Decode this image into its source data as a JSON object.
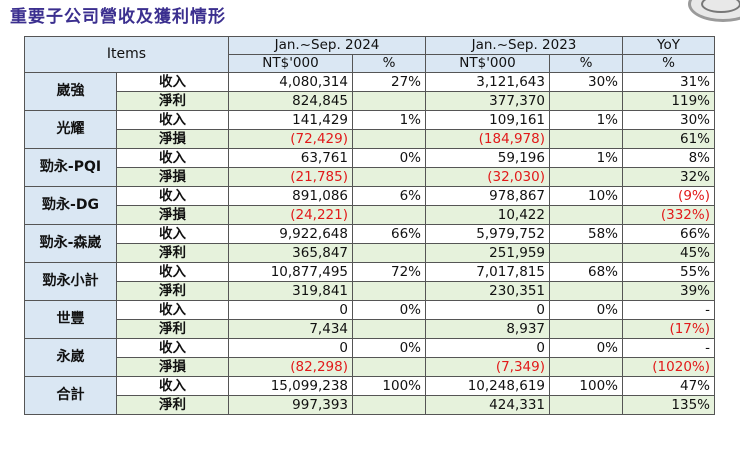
{
  "title": "重要子公司營收及獲利情形",
  "header": {
    "items": "Items",
    "period_2024": "Jan.~Sep. 2024",
    "period_2023": "Jan.~Sep. 2023",
    "yoy": "YoY",
    "unit_2024": "NT$'000",
    "pct_2024": "%",
    "unit_2023": "NT$'000",
    "pct_2023": "%",
    "pct_yoy": "%"
  },
  "companies": [
    {
      "name": "崴強",
      "rows": [
        {
          "metric": "收入",
          "v2024": "4,080,314",
          "p2024": "27%",
          "v2023": "3,121,643",
          "p2023": "30%",
          "yoy": "31%"
        },
        {
          "metric": "淨利",
          "v2024": "824,845",
          "p2024": "",
          "v2023": "377,370",
          "p2023": "",
          "yoy": "119%"
        }
      ]
    },
    {
      "name": "光耀",
      "rows": [
        {
          "metric": "收入",
          "v2024": "141,429",
          "p2024": "1%",
          "v2023": "109,161",
          "p2023": "1%",
          "yoy": "30%"
        },
        {
          "metric": "淨損",
          "v2024": "(72,429)",
          "p2024": "",
          "v2023": "(184,978)",
          "p2023": "",
          "yoy": "61%"
        }
      ]
    },
    {
      "name": "勁永-PQI",
      "rows": [
        {
          "metric": "收入",
          "v2024": "63,761",
          "p2024": "0%",
          "v2023": "59,196",
          "p2023": "1%",
          "yoy": "8%"
        },
        {
          "metric": "淨損",
          "v2024": "(21,785)",
          "p2024": "",
          "v2023": "(32,030)",
          "p2023": "",
          "yoy": "32%"
        }
      ]
    },
    {
      "name": "勁永-DG",
      "rows": [
        {
          "metric": "收入",
          "v2024": "891,086",
          "p2024": "6%",
          "v2023": "978,867",
          "p2023": "10%",
          "yoy": "(9%)"
        },
        {
          "metric": "淨損",
          "v2024": "(24,221)",
          "p2024": "",
          "v2023": "10,422",
          "p2023": "",
          "yoy": "(332%)"
        }
      ]
    },
    {
      "name": "勁永-森崴",
      "rows": [
        {
          "metric": "收入",
          "v2024": "9,922,648",
          "p2024": "66%",
          "v2023": "5,979,752",
          "p2023": "58%",
          "yoy": "66%"
        },
        {
          "metric": "淨利",
          "v2024": "365,847",
          "p2024": "",
          "v2023": "251,959",
          "p2023": "",
          "yoy": "45%"
        }
      ]
    },
    {
      "name": "勁永小計",
      "rows": [
        {
          "metric": "收入",
          "v2024": "10,877,495",
          "p2024": "72%",
          "v2023": "7,017,815",
          "p2023": "68%",
          "yoy": "55%"
        },
        {
          "metric": "淨利",
          "v2024": "319,841",
          "p2024": "",
          "v2023": "230,351",
          "p2023": "",
          "yoy": "39%"
        }
      ]
    },
    {
      "name": "世豐",
      "rows": [
        {
          "metric": "收入",
          "v2024": "0",
          "p2024": "0%",
          "v2023": "0",
          "p2023": "0%",
          "yoy": "-"
        },
        {
          "metric": "淨利",
          "v2024": "7,434",
          "p2024": "",
          "v2023": "8,937",
          "p2023": "",
          "yoy": "(17%)"
        }
      ]
    },
    {
      "name": "永崴",
      "rows": [
        {
          "metric": "收入",
          "v2024": "0",
          "p2024": "0%",
          "v2023": "0",
          "p2023": "0%",
          "yoy": "-"
        },
        {
          "metric": "淨損",
          "v2024": "(82,298)",
          "p2024": "",
          "v2023": "(7,349)",
          "p2023": "",
          "yoy": "(1020%)"
        }
      ]
    },
    {
      "name": "合計",
      "rows": [
        {
          "metric": "收入",
          "v2024": "15,099,238",
          "p2024": "100%",
          "v2023": "10,248,619",
          "p2023": "100%",
          "yoy": "47%"
        },
        {
          "metric": "淨利",
          "v2024": "997,393",
          "p2024": "",
          "v2023": "424,331",
          "p2023": "",
          "yoy": "135%"
        }
      ]
    }
  ]
}
